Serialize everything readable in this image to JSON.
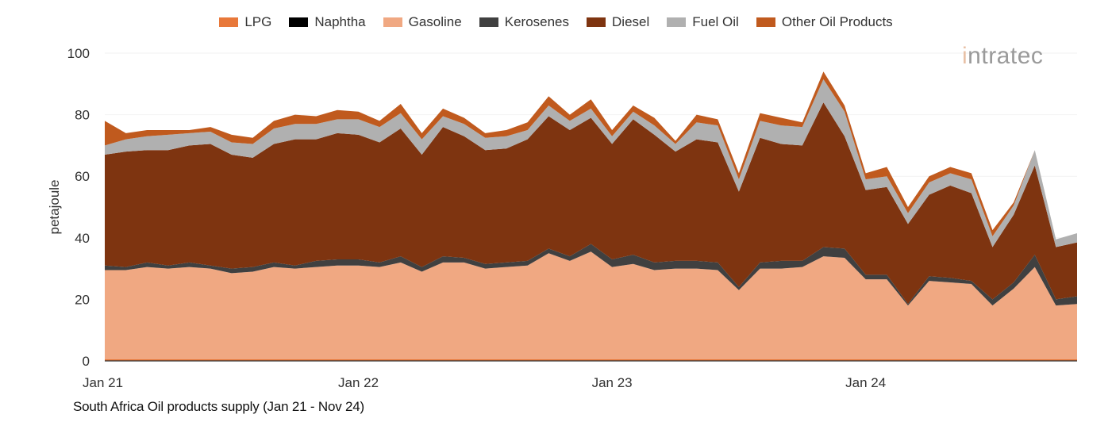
{
  "chart_data": {
    "type": "area",
    "stacked": true,
    "title": "South Africa Oil products supply (Jan 21 - Nov 24)",
    "xlabel": "",
    "ylabel": "petajoule",
    "ylim": [
      0,
      100
    ],
    "yticks": [
      0,
      20,
      40,
      60,
      80,
      100
    ],
    "xticks": [
      "Jan 21",
      "Jan 22",
      "Jan 23",
      "Jan 24"
    ],
    "x_start": "2021-01",
    "x_end": "2024-11",
    "legend_position": "top",
    "grid": true,
    "series": [
      {
        "name": "LPG",
        "color": "#e8783a",
        "values": [
          0.5,
          0.5,
          0.5,
          0.5,
          0.5,
          0.5,
          0.5,
          0.5,
          0.5,
          0.5,
          0.5,
          0.5,
          0.5,
          0.5,
          0.5,
          0.5,
          0.5,
          0.5,
          0.5,
          0.5,
          0.5,
          0.5,
          0.5,
          0.5,
          0.5,
          0.5,
          0.5,
          0.5,
          0.5,
          0.5,
          0.5,
          0.5,
          0.5,
          0.5,
          0.5,
          0.5,
          0.5,
          0.5,
          0.5,
          0.5,
          0.5,
          0.5,
          0.5,
          0.5,
          0.5,
          0.5,
          0.5
        ]
      },
      {
        "name": "Naphtha",
        "color": "#000000",
        "values": [
          0,
          0,
          0,
          0,
          0,
          0,
          0,
          0,
          0,
          0,
          0,
          0,
          0,
          0,
          0,
          0,
          0,
          0,
          0,
          0,
          0,
          0,
          0,
          0,
          0,
          0,
          0,
          0,
          0,
          0,
          0,
          0,
          0,
          0,
          0,
          0,
          0,
          0,
          0,
          0,
          0,
          0,
          0,
          0,
          0,
          0,
          0
        ]
      },
      {
        "name": "Gasoline",
        "color": "#f0a882",
        "values": [
          29,
          29,
          30,
          29.5,
          30,
          29.5,
          28,
          28.5,
          30,
          29.5,
          30,
          30.5,
          30.5,
          30,
          31.5,
          28.5,
          31.5,
          31.5,
          29.5,
          30,
          30.5,
          34.5,
          32,
          35,
          30,
          31,
          29,
          29.5,
          29.5,
          29,
          22.5,
          29.5,
          29.5,
          30,
          33.5,
          33,
          26,
          26,
          17.5,
          25.5,
          25,
          24.5,
          17.5,
          23,
          30,
          17.5,
          18
        ]
      },
      {
        "name": "Kerosenes",
        "color": "#404040",
        "values": [
          1.5,
          1,
          1.5,
          1,
          1.5,
          1,
          1.5,
          1.5,
          1.5,
          1,
          2,
          2,
          2,
          1.5,
          2,
          1.5,
          2,
          1.5,
          1.5,
          1.5,
          1.5,
          1.5,
          1.5,
          2.5,
          2.5,
          3,
          2.5,
          2.5,
          2.5,
          2.5,
          1,
          2,
          2.5,
          2,
          3,
          3,
          1.5,
          1.5,
          0.5,
          1.5,
          1.5,
          1,
          2,
          2,
          4,
          2,
          2.5
        ]
      },
      {
        "name": "Diesel",
        "color": "#7e3410",
        "values": [
          36,
          37.5,
          36.5,
          37.5,
          38,
          39.5,
          37,
          35.5,
          38.5,
          41,
          39.5,
          41,
          40.5,
          39,
          41.5,
          36.5,
          42,
          39.5,
          37,
          37,
          39.5,
          43,
          41,
          41,
          37.5,
          44,
          41.5,
          35.5,
          39.5,
          39,
          31,
          40.5,
          38,
          37.5,
          47,
          36.5,
          27.5,
          28.5,
          26,
          26.5,
          30,
          28.5,
          17,
          22,
          29,
          17,
          17.5
        ]
      },
      {
        "name": "Fuel Oil",
        "color": "#b0b0b0",
        "values": [
          3,
          4,
          4.5,
          5,
          4,
          4,
          4,
          4.5,
          5,
          5,
          5,
          4.5,
          5,
          5,
          5,
          5,
          3.5,
          4,
          4,
          4,
          3,
          3.5,
          3,
          3,
          2.5,
          2.5,
          3,
          2.5,
          5.5,
          5.5,
          4,
          5.5,
          6,
          6,
          7.5,
          8,
          3.5,
          3.5,
          3.5,
          4,
          4,
          4.5,
          3.5,
          3,
          5,
          2.5,
          3
        ]
      },
      {
        "name": "Other Oil Products",
        "color": "#c05a1e",
        "values": [
          8,
          2,
          2,
          1.5,
          1,
          1.5,
          2.5,
          2,
          2.5,
          3,
          2.5,
          3,
          2.5,
          2,
          3,
          2,
          2.5,
          2,
          1.5,
          2,
          2.5,
          3,
          2,
          3,
          2,
          2,
          2.5,
          1,
          2.5,
          2,
          2,
          2.5,
          2.5,
          1.5,
          2.5,
          2,
          2,
          3,
          2,
          2,
          2,
          2,
          2,
          1,
          0,
          0,
          0
        ]
      }
    ]
  },
  "logo": {
    "text": "intratec"
  }
}
